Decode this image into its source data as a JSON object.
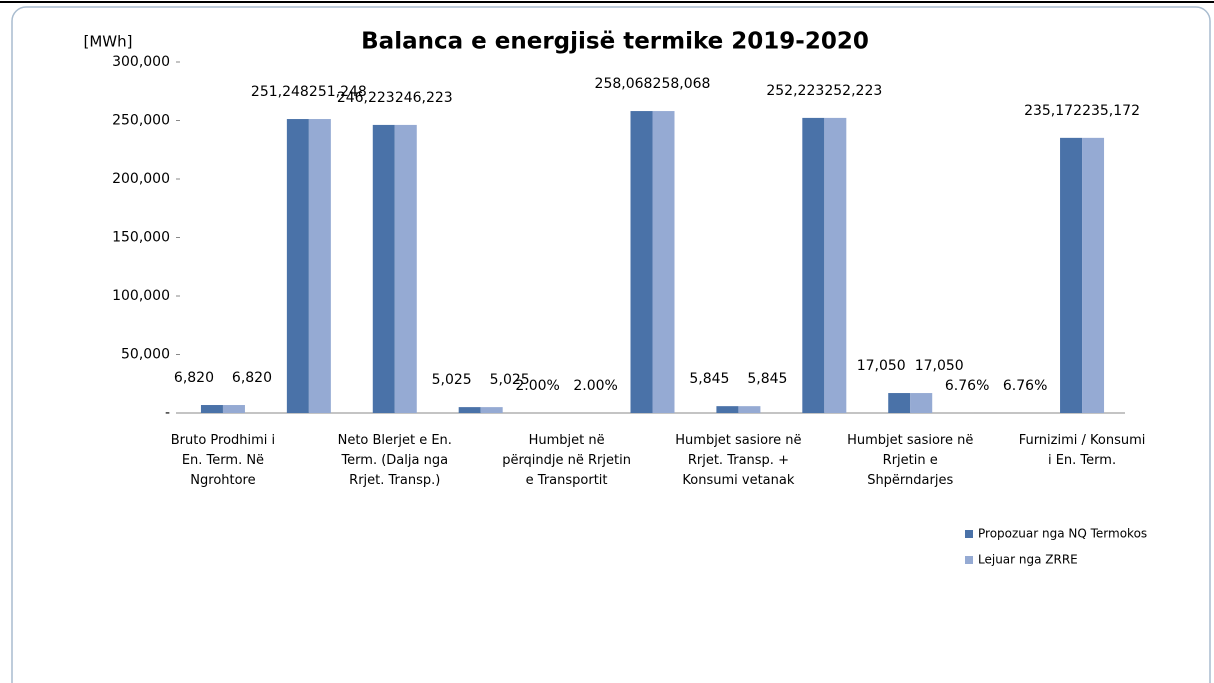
{
  "chart_data": {
    "type": "bar",
    "title": "Balanca e energjisë termike 2019-2020",
    "y_label": "[MWh]",
    "categories": [
      "Bruto Prodhimi i\nEn. Term. Në\nNgrohtore",
      null,
      "Neto Blerjet e En.\nTerm. (Dalja nga\nRrjet. Transp.)",
      null,
      "Humbjet në\npërqindje në Rrjetin\ne Transportit",
      null,
      "Humbjet sasiore në\nRrjet. Transp. +\nKonsumi vetanak",
      null,
      "Humbjet sasiore në\nRrjetin e\nShpërndarjes",
      null,
      "Furnizimi / Konsumi\ni En. Term."
    ],
    "series": [
      {
        "name": "Propozuar nga NQ Termokos",
        "color": "#4a72a8",
        "values": [
          6820,
          251248,
          246223,
          5025,
          2,
          258068,
          5845,
          252223,
          17050,
          6.76,
          235172
        ],
        "value_labels": [
          "6,820",
          "251,248",
          "246,223",
          "5,025",
          "2.00%",
          "258,068",
          "5,845",
          "252,223",
          "17,050",
          "6.76%",
          "235,172"
        ]
      },
      {
        "name": "Lejuar  nga ZRRE",
        "color": "#95aad3",
        "values": [
          6820,
          251248,
          246223,
          5025,
          2,
          258068,
          5845,
          252223,
          17050,
          6.76,
          235172
        ],
        "value_labels": [
          "6,820",
          "251,248",
          "246,223",
          "5,025",
          "2.00%",
          "258,068",
          "5,845",
          "252,223",
          "17,050",
          "6.76%",
          "235,172"
        ]
      }
    ],
    "ylim": [
      0,
      300000
    ],
    "yticks": [
      {
        "value": 0,
        "label": "-"
      },
      {
        "value": 50000,
        "label": "50,000"
      },
      {
        "value": 100000,
        "label": "100,000"
      },
      {
        "value": 150000,
        "label": "150,000"
      },
      {
        "value": 200000,
        "label": "200,000"
      },
      {
        "value": 250000,
        "label": "250,000"
      },
      {
        "value": 300000,
        "label": "300,000"
      }
    ],
    "legend": "right",
    "grid": false
  }
}
